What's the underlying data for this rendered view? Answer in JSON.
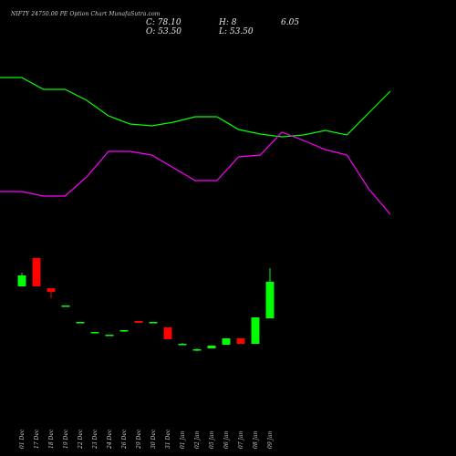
{
  "header": {
    "title": "NIFTY 24750.00 PE Option  Chart MunafaSutra.com",
    "close": "C: 78.10",
    "open": "O: 53.50",
    "high": "H: 8",
    "low": "L: 53.50",
    "change": "6.05"
  },
  "chart_data": {
    "type": "candlestick",
    "title": "NIFTY 24750.00 PE Option  Chart MunafaSutra.com",
    "dates": [
      "01 Dec",
      "17 Dec",
      "18 Dec",
      "19 Dec",
      "22 Dec",
      "23 Dec",
      "24 Dec",
      "26 Dec",
      "29 Dec",
      "30 Dec",
      "31 Dec",
      "01 Jan",
      "02 Jan",
      "05 Jan",
      "06 Jan",
      "07 Jan",
      "08 Jan",
      "09 Jan"
    ],
    "candles": [
      {
        "open": 186,
        "close": 198,
        "high": 201,
        "low": 186,
        "color": "green"
      },
      {
        "open": 217,
        "close": 186,
        "high": 217,
        "low": 186,
        "color": "red"
      },
      {
        "open": 184,
        "close": 180,
        "high": 184,
        "low": 173,
        "color": "red"
      },
      {
        "open": 165,
        "close": 165,
        "high": 165,
        "low": 165,
        "color": "green"
      },
      {
        "open": 147,
        "close": 147,
        "high": 147,
        "low": 147,
        "color": "green"
      },
      {
        "open": 136,
        "close": 136,
        "high": 136,
        "low": 136,
        "color": "green"
      },
      {
        "open": 133,
        "close": 133,
        "high": 133,
        "low": 133,
        "color": "green"
      },
      {
        "open": 138,
        "close": 138,
        "high": 138,
        "low": 138,
        "color": "green"
      },
      {
        "open": 148,
        "close": 146,
        "high": 148,
        "low": 146,
        "color": "red"
      },
      {
        "open": 147,
        "close": 147,
        "high": 147,
        "low": 147,
        "color": "green"
      },
      {
        "open": 141,
        "close": 128,
        "high": 141,
        "low": 128,
        "color": "red"
      },
      {
        "open": 122,
        "close": 123,
        "high": 124,
        "low": 122,
        "color": "green"
      },
      {
        "open": 117,
        "close": 117,
        "high": 118,
        "low": 115,
        "color": "green"
      },
      {
        "open": 118,
        "close": 121,
        "high": 121,
        "low": 118,
        "color": "green"
      },
      {
        "open": 122,
        "close": 129,
        "high": 129,
        "low": 122,
        "color": "green"
      },
      {
        "open": 129,
        "close": 123,
        "high": 129,
        "low": 123,
        "color": "red"
      },
      {
        "open": 123,
        "close": 152,
        "high": 152,
        "low": 123,
        "color": "green"
      },
      {
        "open": 151,
        "close": 191,
        "high": 206,
        "low": 151,
        "color": "green"
      }
    ],
    "indicator_lines": [
      {
        "color": "#00ff00",
        "values": [
          415,
          415,
          402,
          402,
          390,
          373,
          364,
          362,
          366,
          372,
          372,
          358,
          353,
          350,
          352,
          357,
          352,
          376,
          400
        ]
      },
      {
        "color": "#ff00ff",
        "values": [
          290,
          290,
          285,
          285,
          306,
          334,
          334,
          330,
          316,
          302,
          302,
          328,
          330,
          355,
          346,
          336,
          330,
          293,
          265
        ]
      }
    ],
    "ylim": [
      0,
      500
    ],
    "grid": false,
    "colors": {
      "up": "#00ff00",
      "down": "#ff0000",
      "background": "#000000"
    }
  }
}
